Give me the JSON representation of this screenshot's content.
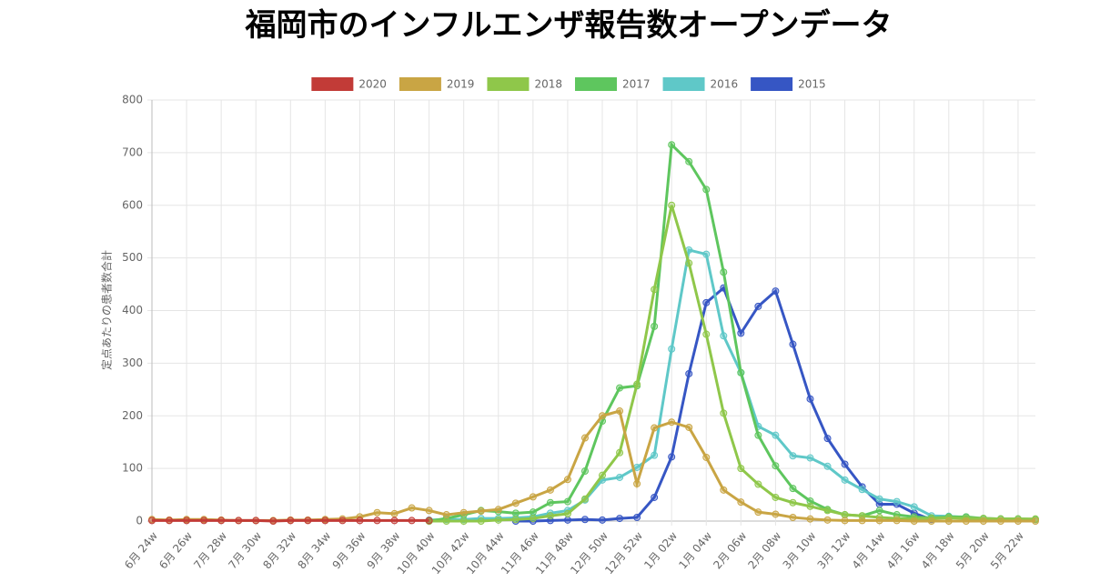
{
  "chart_data": {
    "type": "line",
    "title": "福岡市のインフルエンザ報告数オープンデータ",
    "y_label": "定点あたりの患者数合計",
    "categories": [
      "6月 24w",
      null,
      "6月 26w",
      null,
      "7月 28w",
      null,
      "7月 30w",
      null,
      "8月 32w",
      null,
      "8月 34w",
      null,
      "9月 36w",
      null,
      "9月 38w",
      null,
      "10月 40w",
      null,
      "10月 42w",
      null,
      "10月 44w",
      null,
      "11月 46w",
      null,
      "11月 48w",
      null,
      "12月 50w",
      null,
      "12月 52w",
      null,
      "1月 02w",
      null,
      "1月 04w",
      null,
      "2月 06w",
      null,
      "2月 08w",
      null,
      "3月 10w",
      null,
      "3月 12w",
      null,
      "4月 14w",
      null,
      "4月 16w",
      null,
      "4月 18w",
      null,
      "5月 20w",
      null,
      "5月 22w",
      null
    ],
    "ylim": [
      0,
      800
    ],
    "yticks": [
      0,
      100,
      200,
      300,
      400,
      500,
      600,
      700,
      800
    ],
    "grid": true,
    "legend": "top",
    "series": [
      {
        "name": "2020",
        "color": "#c23b37",
        "values": [
          1,
          1,
          1,
          1,
          1,
          1,
          1,
          0,
          1,
          1,
          1,
          1,
          1,
          1,
          1,
          1,
          1,
          null,
          null,
          null,
          null,
          null,
          null,
          null,
          null,
          null,
          null,
          null,
          null,
          null,
          null,
          null,
          null,
          null,
          null,
          null,
          null,
          null,
          null,
          null,
          null,
          null,
          null,
          null,
          null,
          null,
          null,
          null,
          null,
          null,
          null,
          null
        ]
      },
      {
        "name": "2019",
        "color": "#c9a544",
        "values": [
          3,
          2,
          3,
          3,
          2,
          1,
          1,
          1,
          2,
          2,
          3,
          4,
          8,
          16,
          14,
          25,
          20,
          12,
          16,
          19,
          22,
          34,
          46,
          59,
          79,
          158,
          200,
          209,
          71,
          177,
          188,
          178,
          121,
          59,
          36,
          17,
          13,
          7,
          4,
          2,
          1,
          1,
          1,
          1,
          0,
          0,
          0,
          0,
          0,
          0,
          0,
          0
        ]
      },
      {
        "name": "2018",
        "color": "#8fc74a",
        "values": [
          null,
          null,
          null,
          null,
          null,
          null,
          null,
          null,
          null,
          null,
          null,
          null,
          null,
          null,
          null,
          null,
          0,
          0,
          0,
          0,
          2,
          3,
          5,
          10,
          14,
          42,
          87,
          130,
          260,
          440,
          600,
          490,
          355,
          205,
          100,
          70,
          45,
          35,
          28,
          20,
          12,
          10,
          7,
          5,
          4,
          5,
          6,
          5,
          5,
          4,
          4,
          4
        ]
      },
      {
        "name": "2017",
        "color": "#5ec65e",
        "values": [
          null,
          null,
          null,
          null,
          null,
          null,
          null,
          null,
          null,
          null,
          null,
          null,
          null,
          null,
          null,
          null,
          0,
          5,
          12,
          20,
          18,
          15,
          17,
          35,
          37,
          95,
          190,
          253,
          257,
          370,
          715,
          683,
          630,
          473,
          282,
          163,
          105,
          62,
          38,
          22,
          12,
          10,
          20,
          12,
          8,
          6,
          8,
          8,
          5,
          4,
          4,
          3
        ]
      },
      {
        "name": "2016",
        "color": "#5fc8c8",
        "values": [
          null,
          null,
          null,
          null,
          null,
          null,
          null,
          null,
          null,
          null,
          null,
          null,
          null,
          null,
          null,
          null,
          2,
          3,
          3,
          5,
          5,
          6,
          8,
          15,
          20,
          40,
          78,
          83,
          102,
          125,
          327,
          515,
          507,
          352,
          282,
          180,
          163,
          124,
          120,
          104,
          78,
          60,
          42,
          37,
          27,
          10,
          9,
          7,
          5,
          4,
          4,
          3
        ]
      },
      {
        "name": "2015",
        "color": "#3656c4",
        "values": [
          null,
          null,
          null,
          null,
          null,
          null,
          null,
          null,
          null,
          null,
          null,
          null,
          null,
          null,
          null,
          null,
          null,
          null,
          null,
          null,
          null,
          0,
          0,
          1,
          2,
          3,
          2,
          5,
          7,
          45,
          122,
          280,
          415,
          443,
          357,
          408,
          437,
          336,
          232,
          157,
          108,
          65,
          32,
          32,
          15,
          3,
          null,
          null,
          null,
          null,
          null,
          null
        ]
      }
    ]
  }
}
